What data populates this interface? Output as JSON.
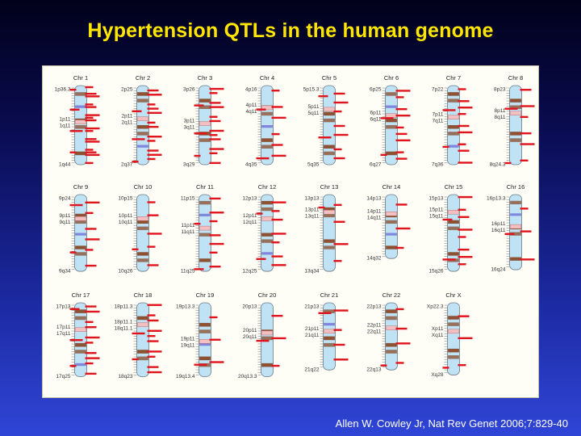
{
  "title": "Hypertension QTLs in the human genome",
  "citation": "Allen W. Cowley Jr, Nat Rev Genet 2006;7:829-40",
  "colors": {
    "qtl": "#e0141c",
    "chromosome_fill": "#bfe2f4",
    "gband": "#8a4a28",
    "heterochromatin": "#6f6fd6",
    "centromere": "#f2c0c0"
  },
  "chromosomes": [
    {
      "name": "Chr 1",
      "bands": [
        "1p36.3",
        "1p11",
        "1q11",
        "1q44"
      ],
      "qtl_count": 16
    },
    {
      "name": "Chr 2",
      "bands": [
        "2p25",
        "2p11",
        "2q11",
        "2q37"
      ],
      "qtl_count": 12
    },
    {
      "name": "Chr 3",
      "bands": [
        "3p26",
        "3p11",
        "3q11",
        "3q29"
      ],
      "qtl_count": 12
    },
    {
      "name": "Chr 4",
      "bands": [
        "4p16",
        "4p11",
        "4q11",
        "4q35"
      ],
      "qtl_count": 6
    },
    {
      "name": "Chr 5",
      "bands": [
        "5p15.3",
        "5p11",
        "5q11",
        "5q35"
      ],
      "qtl_count": 7
    },
    {
      "name": "Chr 6",
      "bands": [
        "6p25",
        "6p11",
        "6q11",
        "6q27"
      ],
      "qtl_count": 9
    },
    {
      "name": "Chr 7",
      "bands": [
        "7p22",
        "7p11",
        "7q11",
        "7q36"
      ],
      "qtl_count": 9
    },
    {
      "name": "Chr 8",
      "bands": [
        "8p23",
        "8p11",
        "8q11",
        "8q24.3"
      ],
      "qtl_count": 6
    },
    {
      "name": "Chr 9",
      "bands": [
        "9p24",
        "9p11",
        "9q11",
        "9q34"
      ],
      "qtl_count": 6
    },
    {
      "name": "Chr 10",
      "bands": [
        "10p15",
        "10p11",
        "10q11",
        "10q26"
      ],
      "qtl_count": 5
    },
    {
      "name": "Chr 11",
      "bands": [
        "11p15",
        "11p11",
        "11q11",
        "11q25"
      ],
      "qtl_count": 7
    },
    {
      "name": "Chr 12",
      "bands": [
        "12p13",
        "12p11",
        "12q11",
        "12q25"
      ],
      "qtl_count": 7
    },
    {
      "name": "Chr 13",
      "bands": [
        "13p13",
        "13p11",
        "13q11",
        "13q34"
      ],
      "qtl_count": 4
    },
    {
      "name": "Chr 14",
      "bands": [
        "14p13",
        "14p11",
        "14q11",
        "14q32"
      ],
      "qtl_count": 3
    },
    {
      "name": "Chr 15",
      "bands": [
        "15p13",
        "15p11",
        "15q11",
        "15q26"
      ],
      "qtl_count": 8
    },
    {
      "name": "Chr 16",
      "bands": [
        "16p13.3",
        "16p11",
        "16q11",
        "16q24"
      ],
      "qtl_count": 3
    },
    {
      "name": "Chr 17",
      "bands": [
        "17p13",
        "17p11",
        "17q11",
        "17q25"
      ],
      "qtl_count": 10
    },
    {
      "name": "Chr 18",
      "bands": [
        "18p11.3",
        "18p11.1",
        "18q11.1",
        "18q23"
      ],
      "qtl_count": 10
    },
    {
      "name": "Chr 19",
      "bands": [
        "19p13.3",
        "19p11",
        "19q11",
        "19q13.4"
      ],
      "qtl_count": 3
    },
    {
      "name": "Chr 20",
      "bands": [
        "20p13",
        "20p11",
        "20q11",
        "20q13.3"
      ],
      "qtl_count": 3
    },
    {
      "name": "Chr 21",
      "bands": [
        "21p13",
        "21p11",
        "21q11",
        "21q22"
      ],
      "qtl_count": 4
    },
    {
      "name": "Chr 22",
      "bands": [
        "22p13",
        "22p11",
        "22q11",
        "22q13"
      ],
      "qtl_count": 4
    },
    {
      "name": "Chr X",
      "bands": [
        "Xp22.3",
        "Xp11",
        "Xq11",
        "Xq28"
      ],
      "qtl_count": 3
    }
  ]
}
